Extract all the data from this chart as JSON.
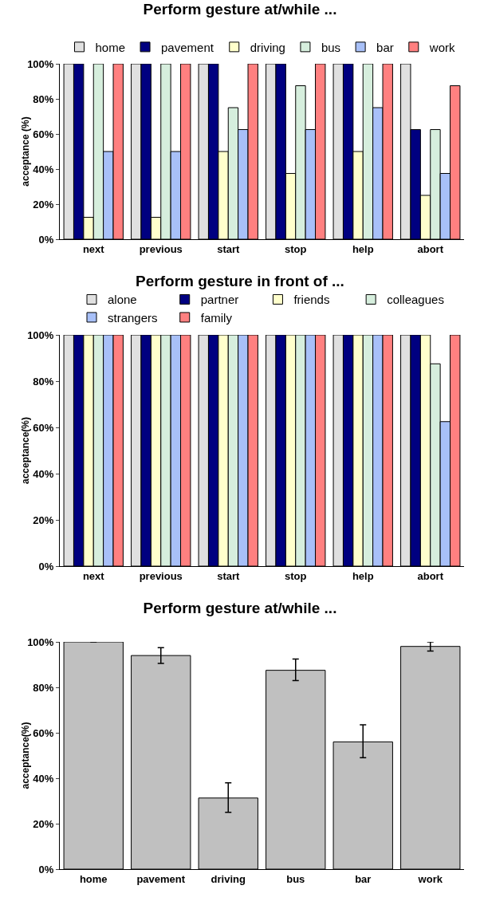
{
  "chart_data": [
    {
      "type": "bar",
      "title": "Perform gesture at/while ...",
      "ylabel": "acceptance (%)",
      "categories": [
        "next",
        "previous",
        "start",
        "stop",
        "help",
        "abort"
      ],
      "series": [
        {
          "name": "home",
          "color": "#e0e0e0",
          "values": [
            100,
            100,
            100,
            100,
            100,
            100
          ]
        },
        {
          "name": "pavement",
          "color": "#000080",
          "values": [
            100,
            100,
            100,
            100,
            100,
            62.5
          ]
        },
        {
          "name": "driving",
          "color": "#ffffcc",
          "values": [
            12.5,
            12.5,
            50,
            37.5,
            50,
            25
          ]
        },
        {
          "name": "bus",
          "color": "#d6eedd",
          "values": [
            100,
            100,
            75,
            87.5,
            100,
            62.5
          ]
        },
        {
          "name": "bar",
          "color": "#a8c0f8",
          "values": [
            50,
            50,
            62.5,
            62.5,
            75,
            37.5
          ]
        },
        {
          "name": "work",
          "color": "#ff8080",
          "values": [
            100,
            100,
            100,
            100,
            100,
            87.5
          ]
        }
      ],
      "ylim": [
        0,
        100
      ],
      "yticks": [
        {
          "value": 0,
          "label": "0%"
        },
        {
          "value": 20,
          "label": "20%"
        },
        {
          "value": 40,
          "label": "40%"
        },
        {
          "value": 60,
          "label": "60%"
        },
        {
          "value": 80,
          "label": "80%"
        },
        {
          "value": 100,
          "label": "100%"
        }
      ],
      "grid": false,
      "legend": "top"
    },
    {
      "type": "bar",
      "title": "Perform gesture in front of ...",
      "ylabel": "acceptance(%)",
      "categories": [
        "next",
        "previous",
        "start",
        "stop",
        "help",
        "abort"
      ],
      "series": [
        {
          "name": "alone",
          "color": "#e0e0e0",
          "values": [
            100,
            100,
            100,
            100,
            100,
            100
          ]
        },
        {
          "name": "partner",
          "color": "#000080",
          "values": [
            100,
            100,
            100,
            100,
            100,
            100
          ]
        },
        {
          "name": "friends",
          "color": "#ffffcc",
          "values": [
            100,
            100,
            100,
            100,
            100,
            100
          ]
        },
        {
          "name": "colleagues",
          "color": "#d6eedd",
          "values": [
            100,
            100,
            100,
            100,
            100,
            87.5
          ]
        },
        {
          "name": "strangers",
          "color": "#a8c0f8",
          "values": [
            100,
            100,
            100,
            100,
            100,
            62.5
          ]
        },
        {
          "name": "family",
          "color": "#ff8080",
          "values": [
            100,
            100,
            100,
            100,
            100,
            100
          ]
        }
      ],
      "ylim": [
        0,
        100
      ],
      "yticks": [
        {
          "value": 0,
          "label": "0%"
        },
        {
          "value": 20,
          "label": "20%"
        },
        {
          "value": 40,
          "label": "40%"
        },
        {
          "value": 60,
          "label": "60%"
        },
        {
          "value": 80,
          "label": "80%"
        },
        {
          "value": 100,
          "label": "100%"
        }
      ],
      "grid": false,
      "legend": "top"
    },
    {
      "type": "bar",
      "title": "Perform gesture at/while ...",
      "ylabel": "acceptance(%)",
      "categories": [
        "home",
        "pavement",
        "driving",
        "bus",
        "bar",
        "work"
      ],
      "values": [
        100,
        94,
        31.3,
        87.5,
        56,
        98
      ],
      "color": "#c0c0c0",
      "errors": [
        null,
        [
          90.5,
          97.5
        ],
        [
          25,
          38
        ],
        [
          83,
          92.5
        ],
        [
          49,
          63.5
        ],
        [
          96,
          100
        ]
      ],
      "ylim": [
        0,
        100
      ],
      "yticks": [
        {
          "value": 0,
          "label": "0%"
        },
        {
          "value": 20,
          "label": "20%"
        },
        {
          "value": 40,
          "label": "40%"
        },
        {
          "value": 60,
          "label": "60%"
        },
        {
          "value": 80,
          "label": "80%"
        },
        {
          "value": 100,
          "label": "100%"
        }
      ],
      "grid": false,
      "legend": false
    }
  ]
}
